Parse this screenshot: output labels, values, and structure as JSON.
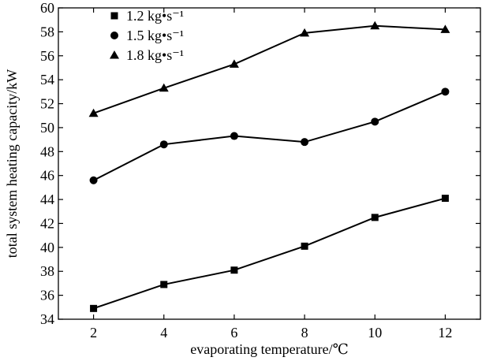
{
  "chart_data": {
    "type": "line",
    "title": "",
    "xlabel": "evaporating temperature/℃",
    "ylabel": "total system heating capacity/kW",
    "x": [
      2,
      4,
      6,
      8,
      10,
      12
    ],
    "xlim": [
      1,
      13
    ],
    "ylim": [
      34,
      60
    ],
    "xticks": [
      2,
      4,
      6,
      8,
      10,
      12
    ],
    "yticks": [
      34,
      36,
      38,
      40,
      42,
      44,
      46,
      48,
      50,
      52,
      54,
      56,
      58,
      60
    ],
    "grid": false,
    "legend_position": "top-left",
    "series": [
      {
        "name": "1.2 kg•s⁻¹",
        "marker": "square",
        "values": [
          34.9,
          36.9,
          38.1,
          40.1,
          42.5,
          44.1
        ]
      },
      {
        "name": "1.5 kg•s⁻¹",
        "marker": "circle",
        "values": [
          45.6,
          48.6,
          49.3,
          48.8,
          50.5,
          53.0
        ]
      },
      {
        "name": "1.8 kg•s⁻¹",
        "marker": "triangle",
        "values": [
          51.2,
          53.3,
          55.3,
          57.9,
          58.5,
          58.2
        ]
      }
    ]
  }
}
